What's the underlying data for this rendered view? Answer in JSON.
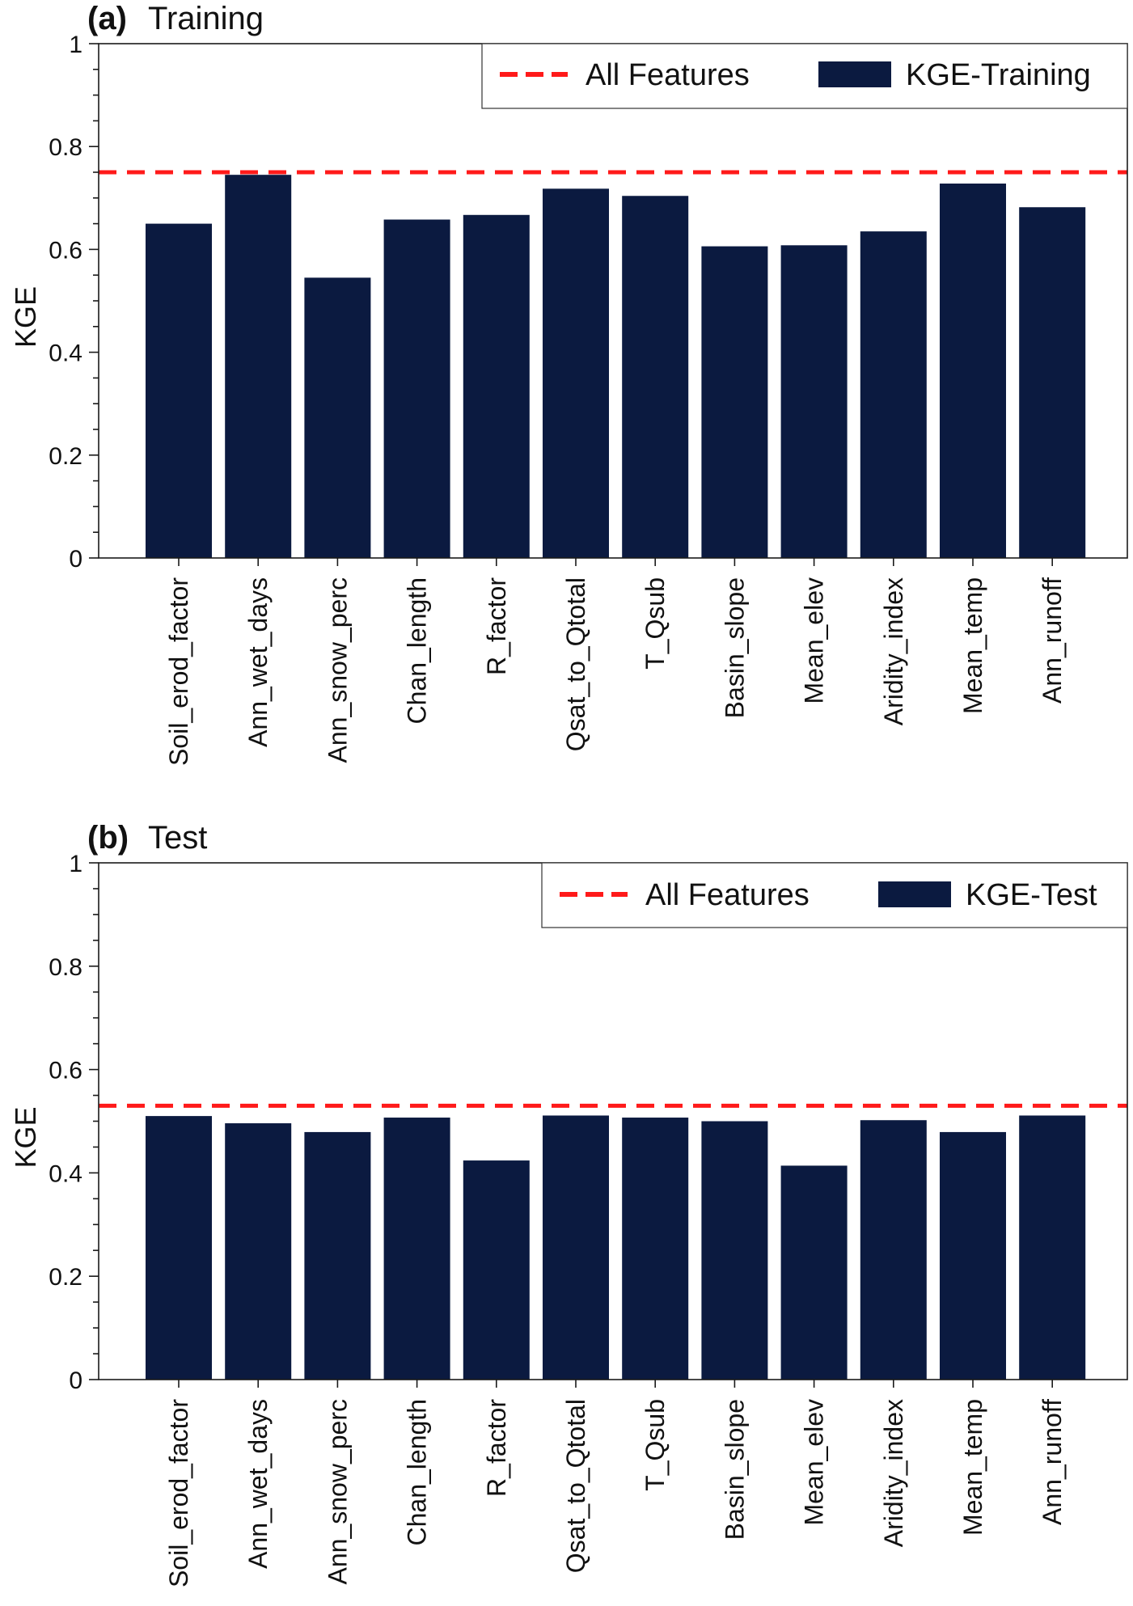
{
  "chart_data": [
    {
      "type": "bar",
      "panel_tag": "(a)",
      "title": "Training",
      "ylabel": "KGE",
      "xlabel": "",
      "ylim": [
        0,
        1
      ],
      "yticks": [
        0,
        0.2,
        0.4,
        0.6,
        0.8,
        1
      ],
      "ytick_labels": [
        "0",
        "0.2",
        "0.4",
        "0.6",
        "0.8",
        "1"
      ],
      "categories": [
        "Soil_erod_factor",
        "Ann_wet_days",
        "Ann_snow_perc",
        "Chan_length",
        "R_factor",
        "Qsat_to_Qtotal",
        "T_Qsub",
        "Basin_slope",
        "Mean_elev",
        "Aridity_index",
        "Mean_temp",
        "Ann_runoff"
      ],
      "series": [
        {
          "name": "KGE-Training",
          "color": "#0b1a40",
          "values": [
            0.65,
            0.745,
            0.545,
            0.658,
            0.667,
            0.718,
            0.704,
            0.606,
            0.608,
            0.635,
            0.728,
            0.682
          ]
        }
      ],
      "reference_line": {
        "name": "All Features",
        "value": 0.75,
        "color": "#ff1a1a",
        "style": "dashed"
      },
      "legend_placement": "top-right",
      "grid": false
    },
    {
      "type": "bar",
      "panel_tag": "(b)",
      "title": "Test",
      "ylabel": "KGE",
      "xlabel": "",
      "ylim": [
        0,
        1
      ],
      "yticks": [
        0,
        0.2,
        0.4,
        0.6,
        0.8,
        1
      ],
      "ytick_labels": [
        "0",
        "0.2",
        "0.4",
        "0.6",
        "0.8",
        "1"
      ],
      "categories": [
        "Soil_erod_factor",
        "Ann_wet_days",
        "Ann_snow_perc",
        "Chan_length",
        "R_factor",
        "Qsat_to_Qtotal",
        "T_Qsub",
        "Basin_slope",
        "Mean_elev",
        "Aridity_index",
        "Mean_temp",
        "Ann_runoff"
      ],
      "series": [
        {
          "name": "KGE-Test",
          "color": "#0b1a40",
          "values": [
            0.51,
            0.496,
            0.479,
            0.507,
            0.424,
            0.511,
            0.507,
            0.5,
            0.414,
            0.502,
            0.479,
            0.511
          ]
        }
      ],
      "reference_line": {
        "name": "All Features",
        "value": 0.53,
        "color": "#ff1a1a",
        "style": "dashed"
      },
      "legend_placement": "top-right",
      "grid": false
    }
  ]
}
